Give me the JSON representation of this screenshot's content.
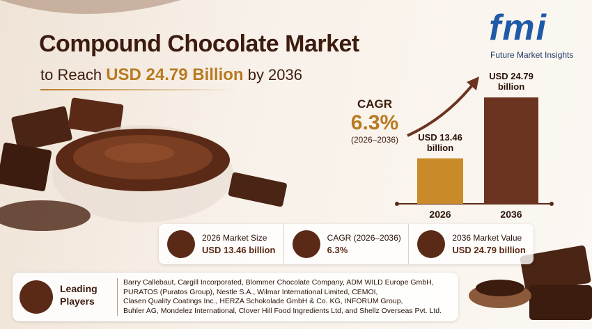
{
  "header": {
    "title": "Compound Chocolate Market",
    "subtitle_parts": [
      "to Reach",
      "USD 24.79 Billion",
      "by 2036"
    ]
  },
  "logo": {
    "mark": "fmi",
    "name": "Future Market Insights"
  },
  "cagr": {
    "label": "CAGR",
    "value": "6.3%",
    "period": "(2026–2036)"
  },
  "chart_data": {
    "type": "bar",
    "categories": [
      "2026",
      "2036"
    ],
    "values": [
      13.46,
      24.79
    ],
    "value_labels": [
      "USD 13.46 billion",
      "USD 24.79 billion"
    ],
    "colors": [
      "#c98a2a",
      "#6b3420"
    ],
    "ylim": [
      5,
      27
    ]
  },
  "stats": [
    {
      "label": "2026 Market Size",
      "value": "USD 13.46 billion"
    },
    {
      "label": "CAGR (2026–2036)",
      "value": "6.3%"
    },
    {
      "label": "2036 Market Value",
      "value": "USD 24.79 billion"
    }
  ],
  "players": {
    "heading": "Leading Players",
    "lines": [
      "Barry Callebaut, Cargill Incorporated, Blommer Chocolate Company, ADM WILD Europe GmbH,",
      "PURATOS (Puratos Group), Nestle S.A., Wilmar International Limited, CEMOI,",
      "Clasen Quality Coatings Inc., HERZA Schokolade GmbH & Co. KG, INFORUM Group,",
      "Buhler AG, Mondelez International, Clover Hill Food Ingredients Ltd, and Shellz Overseas Pvt. Ltd."
    ]
  }
}
